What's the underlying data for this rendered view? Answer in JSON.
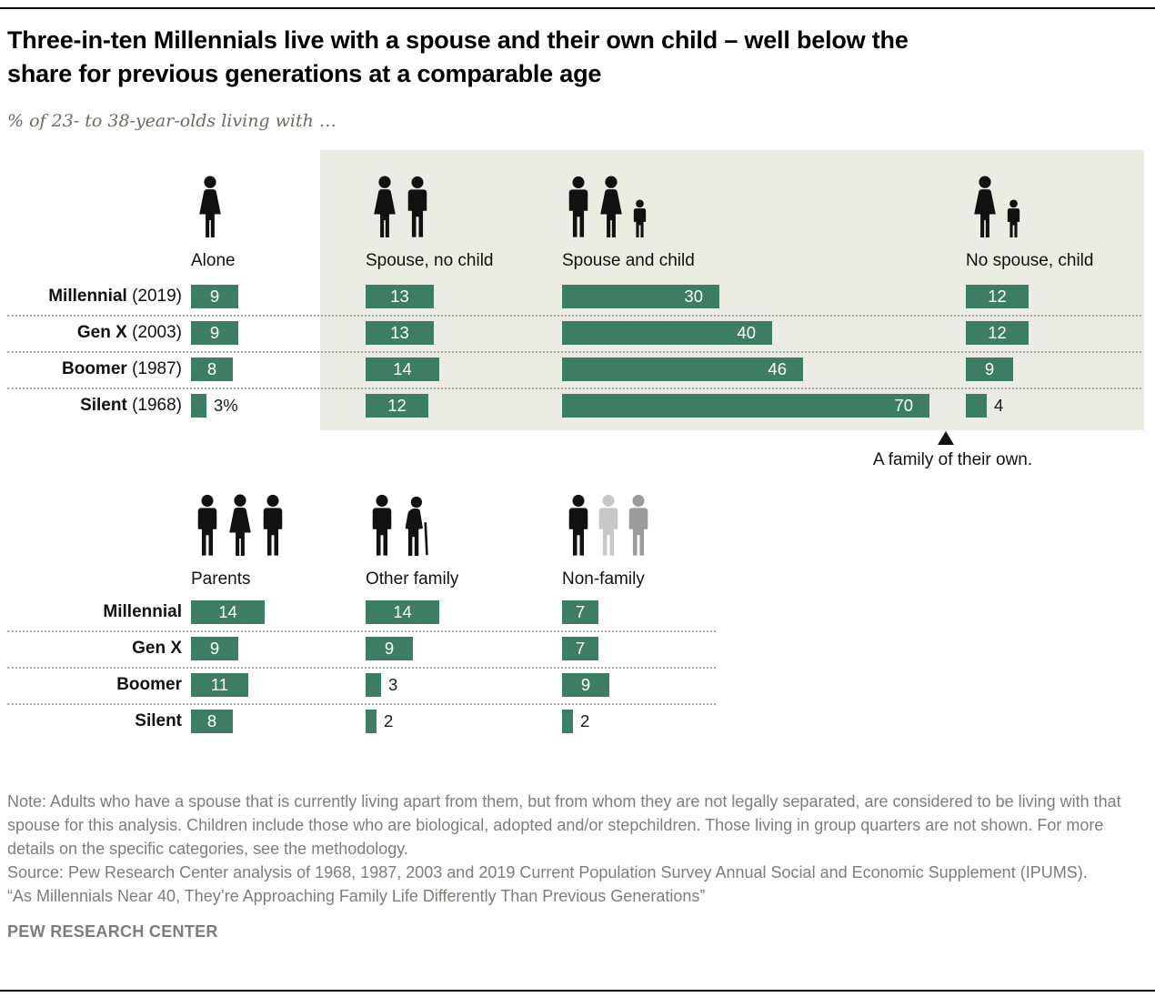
{
  "colors": {
    "bar": "#3d7d63",
    "highlight": "#ECECE2",
    "icon_black": "#111111",
    "icon_gray_light": "#c8c8c8",
    "icon_gray": "#9b9b9b"
  },
  "header": {
    "title_line1": "Three-in-ten Millennials live with a spouse and their own child – well below the",
    "title_line2": "share for previous generations at a comparable age",
    "subtitle": "% of 23- to 38-year-olds living with …"
  },
  "chart_data": {
    "type": "bar",
    "unit": "%",
    "title": "Three-in-ten Millennials live with a spouse and their own child – well below the share for previous generations at a comparable age",
    "subtitle": "% of 23- to 38-year-olds living with …",
    "top_chart": {
      "categories": [
        "Alone",
        "Spouse, no child",
        "Spouse and child",
        "No spouse, child"
      ],
      "rows": [
        {
          "name": "Millennial",
          "year": "(2019)"
        },
        {
          "name": "Gen X",
          "year": "(2003)"
        },
        {
          "name": "Boomer",
          "year": "(1987)"
        },
        {
          "name": "Silent",
          "year": "(1968)"
        }
      ],
      "series": [
        {
          "category": "Alone",
          "values": [
            9,
            9,
            8,
            3
          ],
          "labels": [
            "9",
            "9",
            "8",
            "3%"
          ]
        },
        {
          "category": "Spouse, no child",
          "values": [
            13,
            13,
            14,
            12
          ]
        },
        {
          "category": "Spouse and child",
          "values": [
            30,
            40,
            46,
            70
          ]
        },
        {
          "category": "No spouse, child",
          "values": [
            12,
            12,
            9,
            4
          ]
        }
      ],
      "highlight_label": "A family of their own."
    },
    "bottom_chart": {
      "categories": [
        "Parents",
        "Other family",
        "Non-family"
      ],
      "rows": [
        {
          "name": "Millennial"
        },
        {
          "name": "Gen X"
        },
        {
          "name": "Boomer"
        },
        {
          "name": "Silent"
        }
      ],
      "series": [
        {
          "category": "Parents",
          "values": [
            14,
            9,
            11,
            8
          ]
        },
        {
          "category": "Other family",
          "values": [
            14,
            9,
            3,
            2
          ]
        },
        {
          "category": "Non-family",
          "values": [
            7,
            7,
            9,
            2
          ]
        }
      ]
    }
  },
  "footer": {
    "note": "Note: Adults who have a spouse that is currently living apart from them, but from whom they are not legally separated, are considered to be living with that spouse for this analysis. Children include those who are biological, adopted and/or stepchildren. Those living in group quarters are not shown. For more details on the specific categories, see the methodology.",
    "source": "Source: Pew Research Center analysis of 1968, 1987, 2003 and 2019 Current Population Survey Annual Social and Economic Supplement (IPUMS).",
    "quote": "“As Millennials Near 40, They’re Approaching Family Life Differently Than Previous Generations”",
    "brand": "PEW RESEARCH CENTER"
  }
}
